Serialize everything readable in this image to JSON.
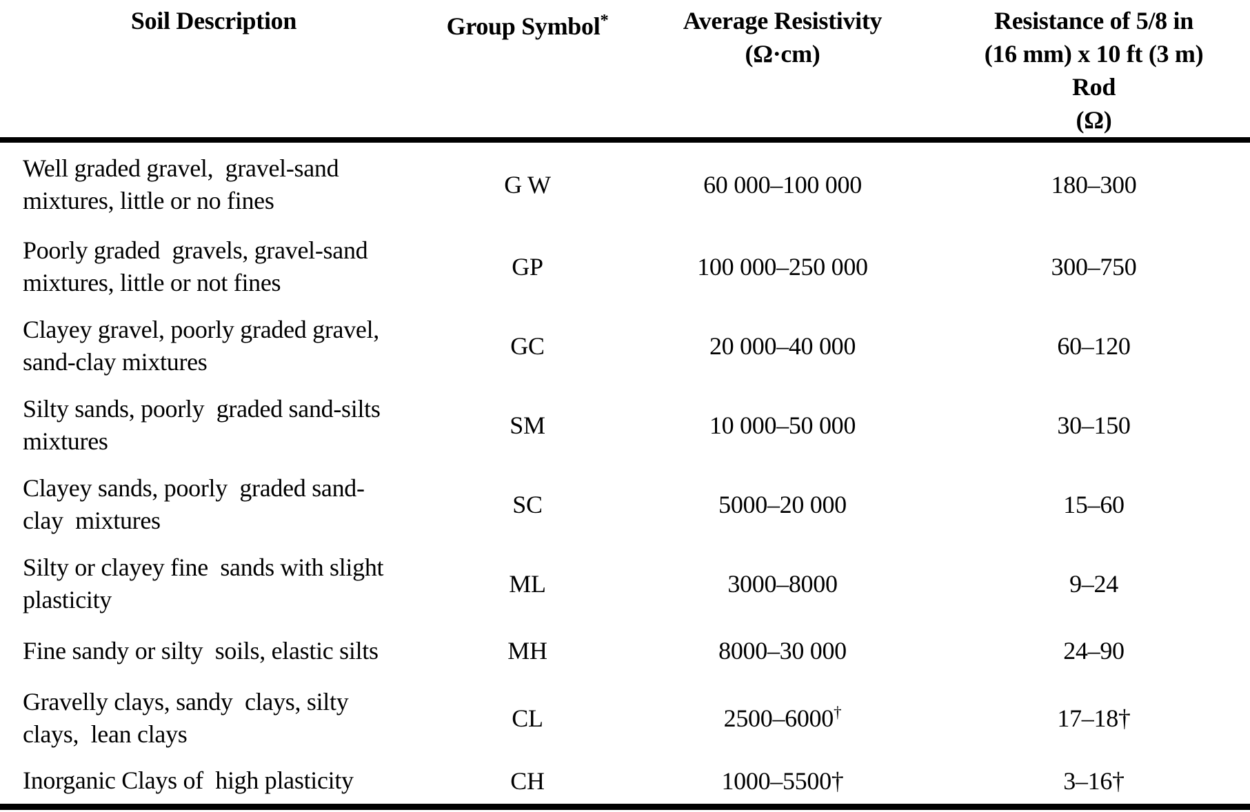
{
  "page": {
    "background": "#ffffff",
    "text_color": "#000000"
  },
  "table": {
    "header": {
      "soil_description": "Soil Description",
      "group_symbol": "Group Symbol",
      "group_symbol_sup": "*",
      "avg_resistivity_line1": "Average Resistivity",
      "avg_resistivity_line2": "(Ω·cm)",
      "resistance_line1": "Resistance of 5/8 in",
      "resistance_line2": "(16 mm) x 10 ft (3 m)",
      "resistance_line3": "Rod",
      "resistance_line4": "(Ω)"
    },
    "rows": [
      {
        "description": "Well graded gravel,  gravel-sand\nmixtures, little or no fines",
        "symbol": "G W",
        "resistivity": "60 000–100 000",
        "resistivity_sup": "",
        "resistance": "180–300"
      },
      {
        "description": "Poorly graded  gravels, gravel-sand\nmixtures, little or not fines",
        "symbol": "GP",
        "resistivity": "100 000–250 000",
        "resistivity_sup": "",
        "resistance": "300–750"
      },
      {
        "description": "Clayey gravel, poorly graded gravel,\nsand-clay mixtures",
        "symbol": "GC",
        "resistivity": "20 000–40 000",
        "resistivity_sup": "",
        "resistance": "60–120"
      },
      {
        "description": "Silty sands, poorly  graded sand-silts\nmixtures",
        "symbol": "SM",
        "resistivity": "10 000–50 000",
        "resistivity_sup": "",
        "resistance": "30–150"
      },
      {
        "description": "Clayey sands, poorly  graded sand-\nclay  mixtures",
        "symbol": "SC",
        "resistivity": "5000–20 000",
        "resistivity_sup": "",
        "resistance": "15–60"
      },
      {
        "description": "Silty or clayey fine  sands with slight\nplasticity",
        "symbol": "ML",
        "resistivity": "3000–8000",
        "resistivity_sup": "",
        "resistance": "9–24"
      },
      {
        "description": "Fine sandy or silty  soils, elastic silts",
        "symbol": "MH",
        "resistivity": "8000–30 000",
        "resistivity_sup": "",
        "resistance": "24–90"
      },
      {
        "description": "Gravelly clays, sandy  clays, silty\nclays,  lean clays",
        "symbol": "CL",
        "resistivity": "2500–6000",
        "resistivity_sup": "†",
        "resistance": "17–18†"
      },
      {
        "description": "Inorganic Clays of  high plasticity",
        "symbol": "CH",
        "resistivity": "1000–5500†",
        "resistivity_sup": "",
        "resistance": "3–16†"
      }
    ]
  }
}
